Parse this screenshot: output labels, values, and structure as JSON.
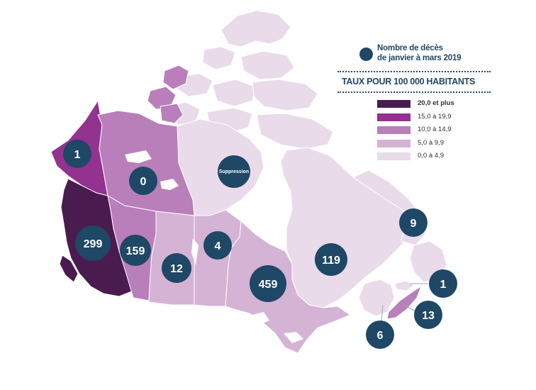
{
  "legend": {
    "bubble_label_1": "Nombre de décès",
    "bubble_label_2": "de janvier à mars 2019",
    "rate_title": "TAUX POUR 100 000 HABITANTS",
    "classes": [
      {
        "label": "20,0 et plus",
        "color": "#4a1b4f"
      },
      {
        "label": "15,0 à 19,9",
        "color": "#93328f"
      },
      {
        "label": "10,0 à 14,9",
        "color": "#b97fba"
      },
      {
        "label": "5,0 à 9,9",
        "color": "#d4b3d5"
      },
      {
        "label": "0,0 à 4,9",
        "color": "#e9dbe9"
      }
    ]
  },
  "bubble_color": "#1f4766",
  "provinces": {
    "yukon": {
      "rate_class": "15,0 à 19,9",
      "deaths": "1"
    },
    "northwest_territories": {
      "rate_class": "10,0 à 14,9",
      "deaths": "0"
    },
    "nunavut": {
      "rate_class": "0,0 à 4,9",
      "deaths": "Suppression"
    },
    "british_columbia": {
      "rate_class": "20,0 et plus",
      "deaths": "299"
    },
    "alberta": {
      "rate_class": "10,0 à 14,9",
      "deaths": "159"
    },
    "saskatchewan": {
      "rate_class": "5,0 à 9,9",
      "deaths": "12"
    },
    "manitoba": {
      "rate_class": "5,0 à 9,9",
      "deaths": "4"
    },
    "ontario": {
      "rate_class": "5,0 à 9,9",
      "deaths": "459"
    },
    "quebec": {
      "rate_class": "0,0 à 4,9",
      "deaths": "119"
    },
    "newfoundland_labrador": {
      "rate_class": "0,0 à 4,9",
      "deaths": "9"
    },
    "prince_edward_island": {
      "rate_class": "0,0 à 4,9",
      "deaths": "1"
    },
    "nova_scotia": {
      "rate_class": "10,0 à 14,9",
      "deaths": "13"
    },
    "new_brunswick": {
      "rate_class": "0,0 à 4,9",
      "deaths": "6"
    }
  }
}
